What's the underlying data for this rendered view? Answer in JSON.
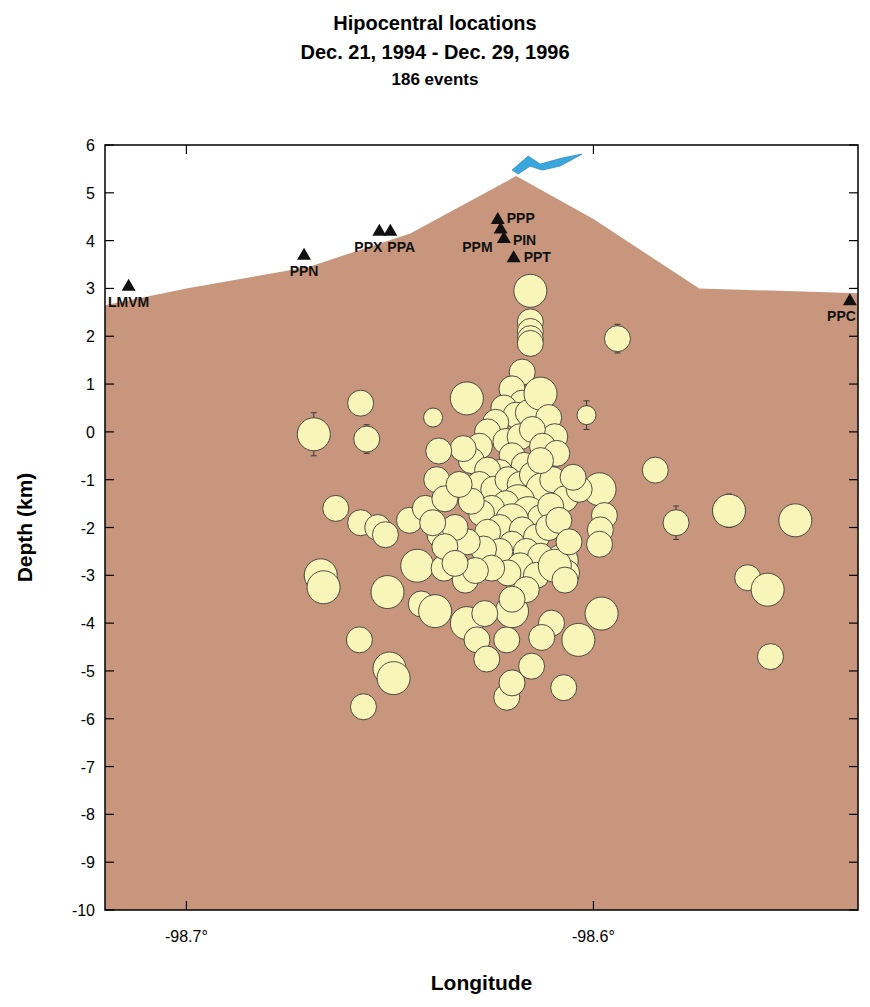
{
  "chart_data": {
    "type": "scatter",
    "title": "Hipocentral locations",
    "subtitle": "Dec. 21, 1994 - Dec. 29, 1996",
    "annotations": [
      "186 events"
    ],
    "x_label": "Longitude",
    "y_label": "Depth (km)",
    "xlim": [
      -98.72,
      -98.535
    ],
    "ylim": [
      -10,
      6
    ],
    "xticks": [
      {
        "value": -98.7,
        "label": "-98.7°"
      },
      {
        "value": -98.6,
        "label": "-98.6°"
      }
    ],
    "yticks": [
      -10,
      -9,
      -8,
      -7,
      -6,
      -5,
      -4,
      -3,
      -2,
      -1,
      0,
      1,
      2,
      3,
      4,
      5,
      6
    ],
    "grid": false,
    "series": [
      {
        "type": "area",
        "color": "#c8967c",
        "x": [
          -98.72,
          -98.7,
          -98.67,
          -98.645,
          -98.619,
          -98.6,
          -98.574,
          -98.535
        ],
        "values": [
          2.65,
          3.0,
          3.45,
          4.15,
          5.35,
          4.45,
          3.0,
          2.9
        ]
      },
      {
        "type": "scatter",
        "marker": "triangle",
        "color": "#111111",
        "labels": [
          "LMVM",
          "PPN",
          "PPX",
          "PPA",
          "PPP",
          "PPM",
          "PIN",
          "PPT",
          "PPC"
        ],
        "x": [
          -98.7142,
          -98.6711,
          -98.6526,
          -98.6499,
          -98.6235,
          -98.6228,
          -98.622,
          -98.6196,
          -98.537
        ],
        "values": [
          2.95,
          3.6,
          4.1,
          4.1,
          4.35,
          4.15,
          3.95,
          3.55,
          2.65
        ]
      },
      {
        "type": "scatter",
        "marker": "circle",
        "color": "#f8f5b8",
        "x": [
          -98.6155,
          -98.6155,
          -98.6155,
          -98.6155,
          -98.6155,
          -98.6175,
          -98.6394,
          -98.5848,
          -98.5504,
          -98.5621,
          -98.5572,
          -98.5985,
          -98.5973,
          -98.5983,
          -98.5985,
          -98.6073,
          -98.6633,
          -98.6572,
          -98.653,
          -98.6511,
          -98.667,
          -98.6663,
          -98.6506,
          -98.6575,
          -98.6423,
          -98.6389,
          -98.6433,
          -98.6367,
          -98.6377,
          -98.6452,
          -98.6413,
          -98.6501,
          -98.6491,
          -98.6565,
          -98.6347,
          -98.6315,
          -98.6311,
          -98.6286,
          -98.6262,
          -98.6213,
          -98.62,
          -98.6152,
          -98.6213,
          -98.62,
          -98.6267,
          -98.6176,
          -98.6139,
          -98.6078,
          -98.6066,
          -98.6103,
          -98.6127,
          -98.62,
          -98.6175,
          -98.622,
          -98.619,
          -98.616,
          -98.613,
          -98.611,
          -98.6095,
          -98.624,
          -98.626,
          -98.628,
          -98.63,
          -98.632,
          -98.6215,
          -98.618,
          -98.615,
          -98.6125,
          -98.62,
          -98.617,
          -98.623,
          -98.626,
          -98.628,
          -98.6245,
          -98.621,
          -98.618,
          -98.615,
          -98.6125,
          -98.61,
          -98.607,
          -98.6035,
          -98.6185,
          -98.6215,
          -98.625,
          -98.6275,
          -98.63,
          -98.616,
          -98.613,
          -98.6105,
          -98.62,
          -98.623,
          -98.626,
          -98.6175,
          -98.614,
          -98.611,
          -98.6085,
          -98.62,
          -98.623,
          -98.627,
          -98.631,
          -98.6165,
          -98.613,
          -98.618,
          -98.621,
          -98.625,
          -98.629,
          -98.614,
          -98.6095,
          -98.607,
          -98.6165,
          -98.62,
          -98.634,
          -98.6365,
          -98.634,
          -98.6385,
          -98.6365,
          -98.633,
          -98.6395,
          -98.606,
          -98.605,
          -98.609,
          -98.613
        ],
        "values": [
          2.95,
          2.3,
          2.1,
          1.95,
          1.85,
          1.25,
          0.3,
          -0.8,
          -1.85,
          -3.05,
          -3.3,
          -1.2,
          -1.75,
          -2.05,
          -2.35,
          -5.35,
          -1.6,
          -1.9,
          -2.0,
          -2.15,
          -3.0,
          -3.25,
          -3.35,
          -4.35,
          -3.6,
          -3.75,
          -2.8,
          -2.85,
          -2.15,
          -1.85,
          -1.6,
          -4.95,
          -5.15,
          -5.75,
          -2.35,
          -3.1,
          -4.0,
          -4.35,
          -4.75,
          -5.55,
          -5.25,
          -4.9,
          -4.35,
          -3.75,
          -3.8,
          -3.1,
          -2.85,
          -2.7,
          -2.95,
          -4.0,
          -4.3,
          0.9,
          0.6,
          0.5,
          0.35,
          0.4,
          0.8,
          0.3,
          -0.1,
          0.2,
          0.0,
          -0.3,
          -0.6,
          -0.35,
          -0.2,
          -0.1,
          0.05,
          -0.3,
          -0.5,
          -0.7,
          -0.85,
          -0.8,
          -1.1,
          -1.2,
          -1.0,
          -1.1,
          -0.9,
          -1.2,
          -1.0,
          -1.4,
          -1.2,
          -1.45,
          -1.5,
          -1.6,
          -1.7,
          -1.45,
          -1.7,
          -1.8,
          -1.55,
          -1.85,
          -2.0,
          -2.1,
          -2.05,
          -2.2,
          -2.0,
          -1.85,
          -2.35,
          -2.5,
          -2.45,
          -2.3,
          -2.5,
          -2.6,
          -2.8,
          -2.95,
          -2.85,
          -2.9,
          -3.0,
          -2.8,
          -3.1,
          -3.3,
          -3.5,
          -2.0,
          -2.4,
          -2.75,
          -1.0,
          -1.4,
          -1.1,
          -1.9,
          -2.3,
          -0.95,
          -0.45,
          -0.6
        ],
        "sizes": [
          3,
          2,
          2,
          2,
          2,
          2,
          1,
          2,
          3,
          2,
          3,
          3,
          2,
          2,
          2,
          2,
          2,
          2,
          2,
          2,
          3,
          3,
          3,
          2,
          2,
          3,
          3,
          2,
          2,
          2,
          2,
          3,
          3,
          2,
          2,
          2,
          3,
          2,
          2,
          2,
          2,
          2,
          2,
          3,
          2,
          3,
          2,
          3,
          2,
          2,
          2,
          2,
          2,
          2,
          2,
          2,
          3,
          2,
          2,
          2,
          2,
          2,
          2,
          2,
          2,
          2,
          2,
          2,
          2,
          2,
          2,
          2,
          2,
          2,
          2,
          2,
          2,
          3,
          2,
          2,
          2,
          3,
          2,
          2,
          2,
          2,
          3,
          2,
          2,
          3,
          2,
          2,
          2,
          2,
          2,
          2,
          2,
          2,
          2,
          2,
          2,
          2,
          2,
          2,
          2,
          2,
          2,
          3,
          2,
          2,
          2,
          2,
          2,
          2,
          2,
          2,
          2,
          2,
          2,
          2,
          2,
          2
        ]
      },
      {
        "type": "scatter",
        "marker": "circle",
        "color": "#f8f5b8",
        "x": [
          -98.5941,
          -98.6687,
          -98.6572,
          -98.6557,
          -98.638,
          -98.6311,
          -98.6017,
          -98.5797,
          -98.5667,
          -98.5565,
          -98.598,
          -98.6037
        ],
        "values": [
          1.95,
          -0.05,
          0.6,
          -0.15,
          -0.4,
          0.7,
          0.35,
          -1.9,
          -1.65,
          -4.7,
          -3.8,
          -4.35
        ],
        "sizes": [
          2,
          3,
          2,
          2,
          2,
          3,
          1,
          2,
          3,
          2,
          3,
          3
        ],
        "yerr": [
          0.3,
          0.45,
          0.2,
          0.3,
          0.2,
          0.3,
          0.3,
          0.35,
          0.35,
          0.15,
          0.25,
          0.2
        ],
        "xerr": [
          null,
          null,
          null,
          null,
          null,
          null,
          null,
          null,
          0.004,
          0.003,
          null,
          null
        ]
      }
    ]
  }
}
